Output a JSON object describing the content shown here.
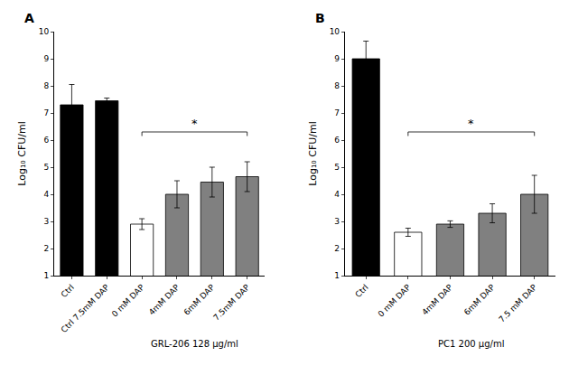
{
  "chart_data": [
    {
      "type": "bar",
      "title": "A",
      "categories": [
        "Ctrl",
        "Ctrl 7.5mM DAP",
        "0 mM DAP",
        "4mM DAP",
        "6mM DAP",
        "7.5mM DAP"
      ],
      "values": [
        7.3,
        7.45,
        2.9,
        4.0,
        4.45,
        4.65
      ],
      "errors": [
        0.75,
        0.1,
        0.2,
        0.5,
        0.55,
        0.55
      ],
      "colors": [
        "#000000",
        "#000000",
        "#ffffff",
        "#808080",
        "#808080",
        "#808080"
      ],
      "ylabel": "Log₁₀ CFU/ml",
      "ylim": [
        1,
        10
      ],
      "yticks": [
        1,
        2,
        3,
        4,
        5,
        6,
        7,
        8,
        9,
        10
      ],
      "grid": false,
      "annotations": [
        {
          "text": "*",
          "from": "0 mM DAP",
          "to": "7.5mM DAP",
          "y": 6.3
        },
        {
          "text": "GRL-206 128 μg/ml",
          "from": "0 mM DAP",
          "to": "7.5mM DAP"
        }
      ]
    },
    {
      "type": "bar",
      "title": "B",
      "categories": [
        "Ctrl",
        "0 mM DAP",
        "4mM DAP",
        "6mM DAP",
        "7.5 mM DAP"
      ],
      "values": [
        9.0,
        2.6,
        2.9,
        3.3,
        4.0
      ],
      "errors": [
        0.65,
        0.15,
        0.12,
        0.35,
        0.7
      ],
      "colors": [
        "#000000",
        "#ffffff",
        "#808080",
        "#808080",
        "#808080"
      ],
      "ylabel": "Log₁₀ CFU/ml",
      "ylim": [
        1,
        10
      ],
      "yticks": [
        1,
        2,
        3,
        4,
        5,
        6,
        7,
        8,
        9,
        10
      ],
      "grid": false,
      "annotations": [
        {
          "text": "*",
          "from": "0 mM DAP",
          "to": "7.5 mM DAP",
          "y": 6.3
        },
        {
          "text": "PC1 200 μg/ml",
          "from": "0 mM DAP",
          "to": "7.5 mM DAP"
        }
      ]
    }
  ]
}
